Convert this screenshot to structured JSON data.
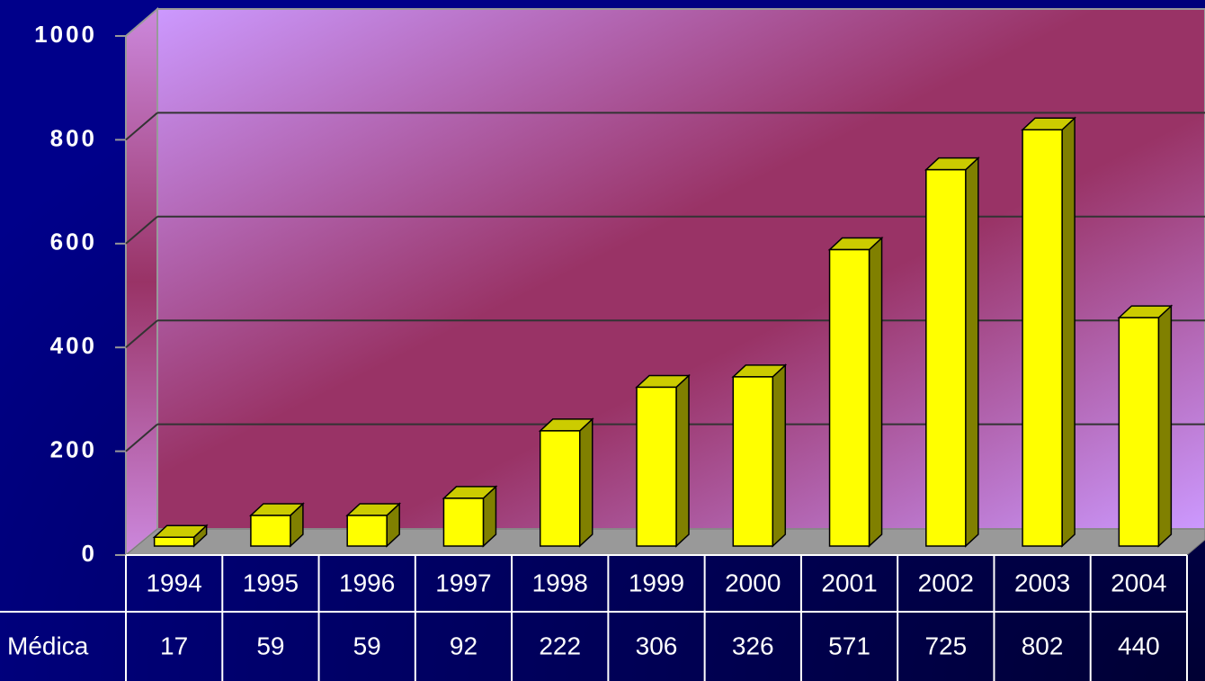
{
  "chart_data": {
    "type": "bar",
    "categories": [
      "1994",
      "1995",
      "1996",
      "1997",
      "1998",
      "1999",
      "2000",
      "2001",
      "2002",
      "2003",
      "2004"
    ],
    "series": [
      {
        "name": "Médica",
        "color": "#ffff00",
        "values": [
          17,
          59,
          59,
          92,
          222,
          306,
          326,
          571,
          725,
          802,
          440
        ]
      }
    ],
    "ylim": [
      0,
      1000
    ],
    "yticks": [
      0,
      200,
      400,
      600,
      800,
      1000
    ],
    "grid": true
  }
}
